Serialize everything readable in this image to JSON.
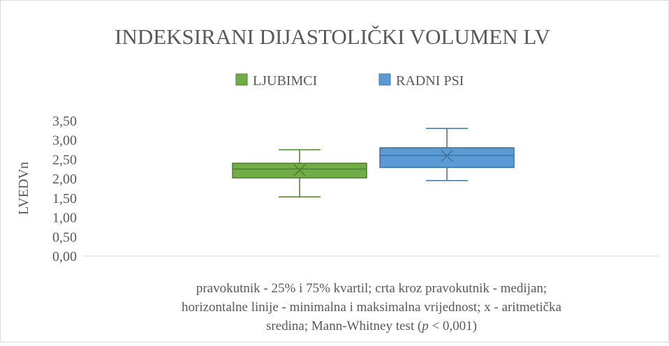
{
  "chart_data": {
    "type": "box",
    "title": "INDEKSIRANI DIJASTOLIČKI VOLUMEN LV",
    "y_label": "LVEDVn",
    "series": [
      {
        "name": "LJUBIMCI",
        "color": "#70ad47",
        "edge": "#507e32",
        "min": 1.53,
        "q1": 2.02,
        "median": 2.25,
        "q3": 2.4,
        "max": 2.75,
        "mean": 2.22
      },
      {
        "name": "RADNI PSI",
        "color": "#5b9bd5",
        "edge": "#41719c",
        "min": 1.95,
        "q1": 2.29,
        "median": 2.6,
        "q3": 2.8,
        "max": 3.3,
        "mean": 2.59
      }
    ],
    "ylim": [
      0,
      3.5
    ],
    "yticks": [
      {
        "value": 0,
        "label": "0,00"
      },
      {
        "value": 0.5,
        "label": "0,50"
      },
      {
        "value": 1,
        "label": "1,00"
      },
      {
        "value": 1.5,
        "label": "1,50"
      },
      {
        "value": 2,
        "label": "2,00"
      },
      {
        "value": 2.5,
        "label": "2,50"
      },
      {
        "value": 3,
        "label": "3,00"
      },
      {
        "value": 3.5,
        "label": "3,50"
      }
    ],
    "grid": false,
    "legend": "top",
    "note": [
      "pravokutnik - 25% i 75% kvartil; crta kroz pravokutnik - medijan;",
      "horizontalne linije - minimalna i maksimalna vrijednost; x - aritmetička",
      "sredina; Mann-Whitney test (",
      "p",
      " < 0,001)"
    ]
  }
}
